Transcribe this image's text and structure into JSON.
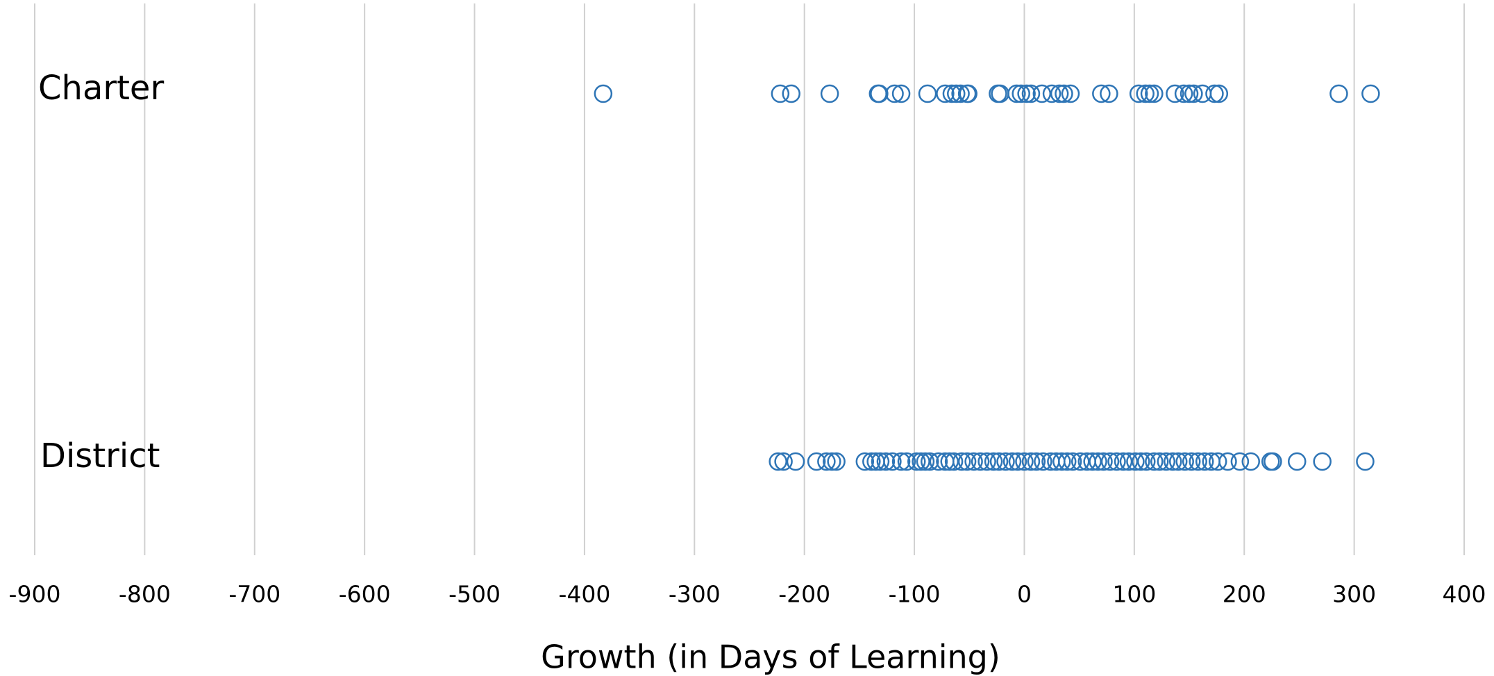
{
  "chart_data": {
    "type": "strip",
    "xlabel": "Growth (in Days of Learning)",
    "categories": [
      "Charter",
      "District"
    ],
    "values": [
      [
        -383,
        -222,
        -212,
        -177,
        -133,
        -132,
        -118,
        -112,
        -88,
        -72,
        -66,
        -62,
        -58,
        -52,
        -51,
        -24,
        -22,
        -7,
        -3,
        2,
        6,
        16,
        25,
        32,
        36,
        42,
        70,
        77,
        104,
        110,
        114,
        118,
        137,
        145,
        150,
        154,
        162,
        173,
        177,
        286,
        315
      ],
      [
        -224,
        -219,
        -208,
        -189,
        -180,
        -175,
        -171,
        -145,
        -139,
        -135,
        -131,
        -126,
        -120,
        -112,
        -107,
        -98,
        -94,
        -90,
        -86,
        -78,
        -72,
        -68,
        -64,
        -57,
        -52,
        -46,
        -40,
        -34,
        -28,
        -23,
        -17,
        -11,
        -6,
        0,
        6,
        11,
        17,
        24,
        29,
        34,
        39,
        44,
        51,
        57,
        62,
        67,
        72,
        78,
        84,
        90,
        95,
        101,
        106,
        111,
        118,
        123,
        129,
        135,
        140,
        146,
        152,
        158,
        164,
        170,
        176,
        185,
        196,
        206,
        224,
        226,
        248,
        271,
        310
      ]
    ],
    "color": "#2e75b6",
    "xlim": [
      -900,
      400
    ],
    "xticks": [
      -900,
      -800,
      -700,
      -600,
      -500,
      -400,
      -300,
      -200,
      -100,
      0,
      100,
      200,
      300,
      400
    ],
    "grid": true
  }
}
